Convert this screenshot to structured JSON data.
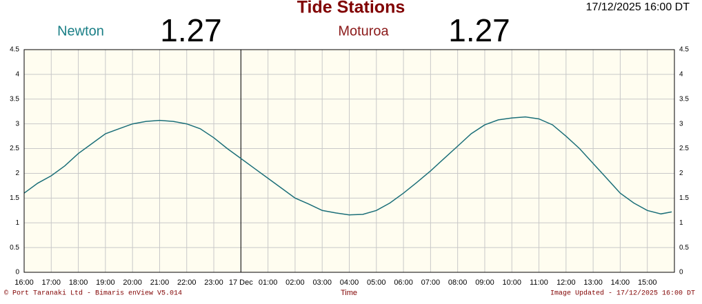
{
  "chart_data": {
    "type": "line",
    "title": "Tide Stations",
    "timestamp": "17/12/2025 16:00 DT",
    "stations": [
      {
        "name": "Newton",
        "color": "#1a7f86",
        "reading": 1.27
      },
      {
        "name": "Moturoa",
        "color": "#8b1a1a",
        "reading": 1.27
      }
    ],
    "x_label": "Time",
    "footer_left": "© Port Taranaki Ltd - Bimaris enView V5.014",
    "footer_right": "Image Updated - 17/12/2025 16:00 DT",
    "x": [
      0,
      0.5,
      1,
      1.5,
      2,
      2.5,
      3,
      3.5,
      4,
      4.5,
      5,
      5.5,
      6,
      6.5,
      7,
      7.5,
      8,
      8.5,
      9,
      9.5,
      10,
      10.5,
      11,
      11.5,
      12,
      12.5,
      13,
      13.5,
      14,
      14.5,
      15,
      15.5,
      16,
      16.5,
      17,
      17.5,
      18,
      18.5,
      19,
      19.5,
      20,
      20.5,
      21,
      21.5,
      22,
      22.5,
      23,
      23.5,
      23.9
    ],
    "series": [
      {
        "color": "#1a6e78",
        "values": [
          1.6,
          1.8,
          1.95,
          2.15,
          2.4,
          2.6,
          2.8,
          2.9,
          3.0,
          3.05,
          3.07,
          3.05,
          3.0,
          2.9,
          2.72,
          2.5,
          2.3,
          2.1,
          1.9,
          1.7,
          1.5,
          1.38,
          1.25,
          1.2,
          1.16,
          1.17,
          1.25,
          1.4,
          1.6,
          1.82,
          2.05,
          2.3,
          2.55,
          2.8,
          2.98,
          3.08,
          3.12,
          3.14,
          3.1,
          2.98,
          2.75,
          2.5,
          2.2,
          1.9,
          1.6,
          1.4,
          1.25,
          1.18,
          1.22
        ]
      }
    ],
    "xlim": [
      0,
      24
    ],
    "xticks": [
      {
        "value": 0,
        "label": "16:00"
      },
      {
        "value": 1,
        "label": "17:00"
      },
      {
        "value": 2,
        "label": "18:00"
      },
      {
        "value": 3,
        "label": "19:00"
      },
      {
        "value": 4,
        "label": "20:00"
      },
      {
        "value": 5,
        "label": "21:00"
      },
      {
        "value": 6,
        "label": "22:00"
      },
      {
        "value": 7,
        "label": "23:00"
      },
      {
        "value": 8,
        "label": "17 Dec"
      },
      {
        "value": 9,
        "label": "01:00"
      },
      {
        "value": 10,
        "label": "02:00"
      },
      {
        "value": 11,
        "label": "03:00"
      },
      {
        "value": 12,
        "label": "04:00"
      },
      {
        "value": 13,
        "label": "05:00"
      },
      {
        "value": 14,
        "label": "06:00"
      },
      {
        "value": 15,
        "label": "07:00"
      },
      {
        "value": 16,
        "label": "08:00"
      },
      {
        "value": 17,
        "label": "09:00"
      },
      {
        "value": 18,
        "label": "10:00"
      },
      {
        "value": 19,
        "label": "11:00"
      },
      {
        "value": 20,
        "label": "12:00"
      },
      {
        "value": 21,
        "label": "13:00"
      },
      {
        "value": 22,
        "label": "14:00"
      },
      {
        "value": 23,
        "label": "15:00"
      }
    ],
    "ylim": [
      0,
      4.5
    ],
    "yticks": [
      0,
      0.5,
      1,
      1.5,
      2,
      2.5,
      3,
      3.5,
      4,
      4.5
    ],
    "grid": true,
    "day_boundary_tick": 8
  }
}
